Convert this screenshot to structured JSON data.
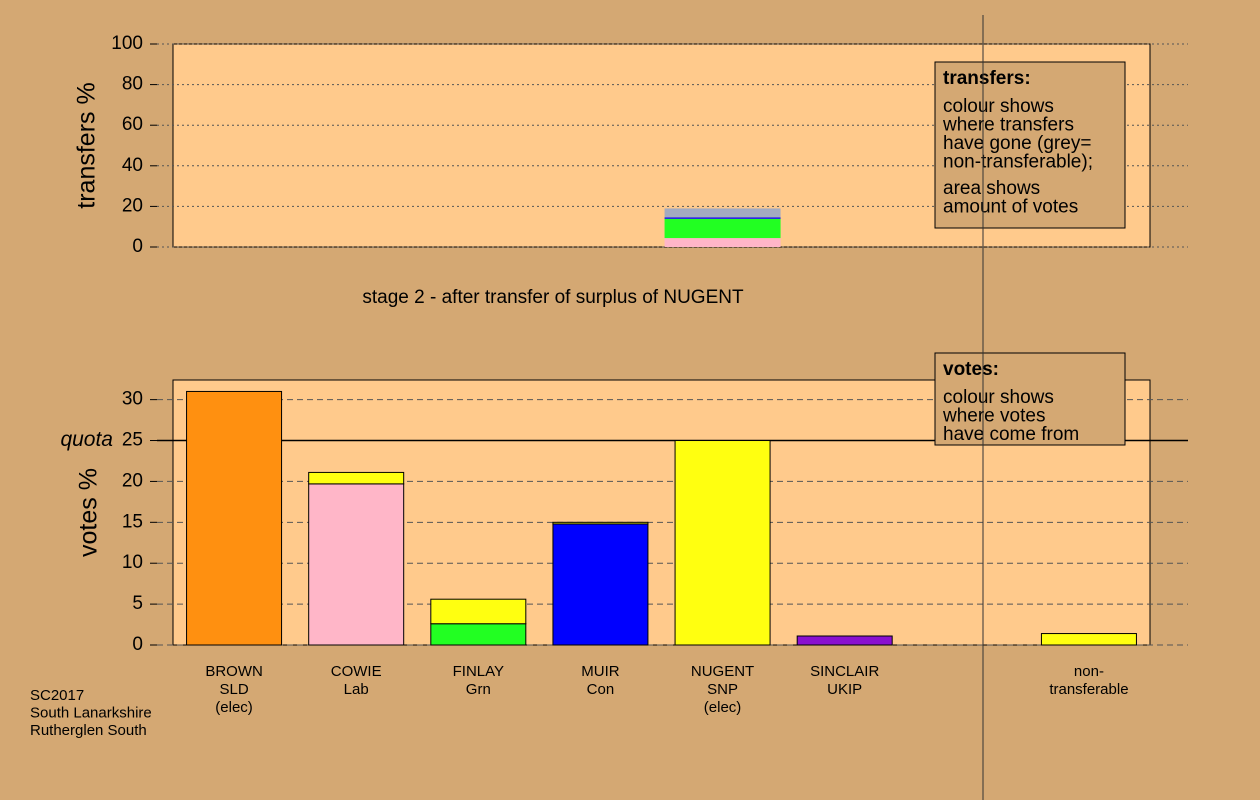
{
  "chart_data": [
    {
      "type": "stacked-bar",
      "ylabel": "transfers %",
      "xlabel": "stage 2 - after transfer of surplus of NUGENT",
      "ylim": [
        0,
        100
      ],
      "yticks": [
        0,
        20,
        40,
        60,
        80,
        100
      ],
      "grid": true,
      "series": [
        {
          "color": "#ffb6c8",
          "values": [
            4.4
          ]
        },
        {
          "color": "#22ff22",
          "values": [
            9.5
          ]
        },
        {
          "color": "#0000ff",
          "values": [
            0.7
          ]
        },
        {
          "color": "#a3aac0",
          "values": [
            4.4
          ]
        }
      ],
      "legend_box": {
        "title": "transfers:",
        "lines": [
          [
            "colour shows",
            "where transfers",
            "have gone (grey=",
            "non-transferable);"
          ],
          [
            "area shows",
            "amount of votes"
          ]
        ]
      }
    },
    {
      "type": "stacked-bar",
      "ylabel": "votes %",
      "ylim": [
        0,
        32.4
      ],
      "yticks": [
        0,
        5,
        10,
        15,
        20,
        25,
        30
      ],
      "grid": true,
      "quota": {
        "value": 25,
        "label": "quota"
      },
      "categories": [
        [
          "BROWN",
          "SLD",
          "(elec)"
        ],
        [
          "COWIE",
          "Lab"
        ],
        [
          "FINLAY",
          "Grn"
        ],
        [
          "MUIR",
          "Con"
        ],
        [
          "NUGENT",
          "SNP",
          "(elec)"
        ],
        [
          "SINCLAIR",
          "UKIP"
        ],
        null,
        [
          "non-",
          "transferable"
        ]
      ],
      "series": [
        {
          "color": "#ff9010",
          "values": [
            31.0,
            null,
            null,
            null,
            null,
            null,
            null,
            null
          ]
        },
        {
          "color": "#ffb6c8",
          "values": [
            null,
            19.7,
            null,
            null,
            null,
            null,
            null,
            null
          ]
        },
        {
          "color": "#22ff22",
          "values": [
            null,
            null,
            2.6,
            null,
            null,
            null,
            null,
            null
          ]
        },
        {
          "color": "#0000ff",
          "values": [
            null,
            null,
            null,
            14.8,
            null,
            null,
            null,
            null
          ]
        },
        {
          "color": "#8a10d0",
          "values": [
            null,
            null,
            null,
            null,
            null,
            1.1,
            null,
            null
          ]
        },
        {
          "color": "#ffff10",
          "values": [
            null,
            1.4,
            3.0,
            0.2,
            25.0,
            null,
            null,
            1.4
          ]
        }
      ],
      "legend_box": {
        "title": "votes:",
        "lines": [
          [
            "colour shows",
            "where votes",
            "have come from"
          ]
        ]
      }
    }
  ],
  "footnote": [
    "SC2017",
    "South Lanarkshire",
    "Rutherglen South"
  ]
}
